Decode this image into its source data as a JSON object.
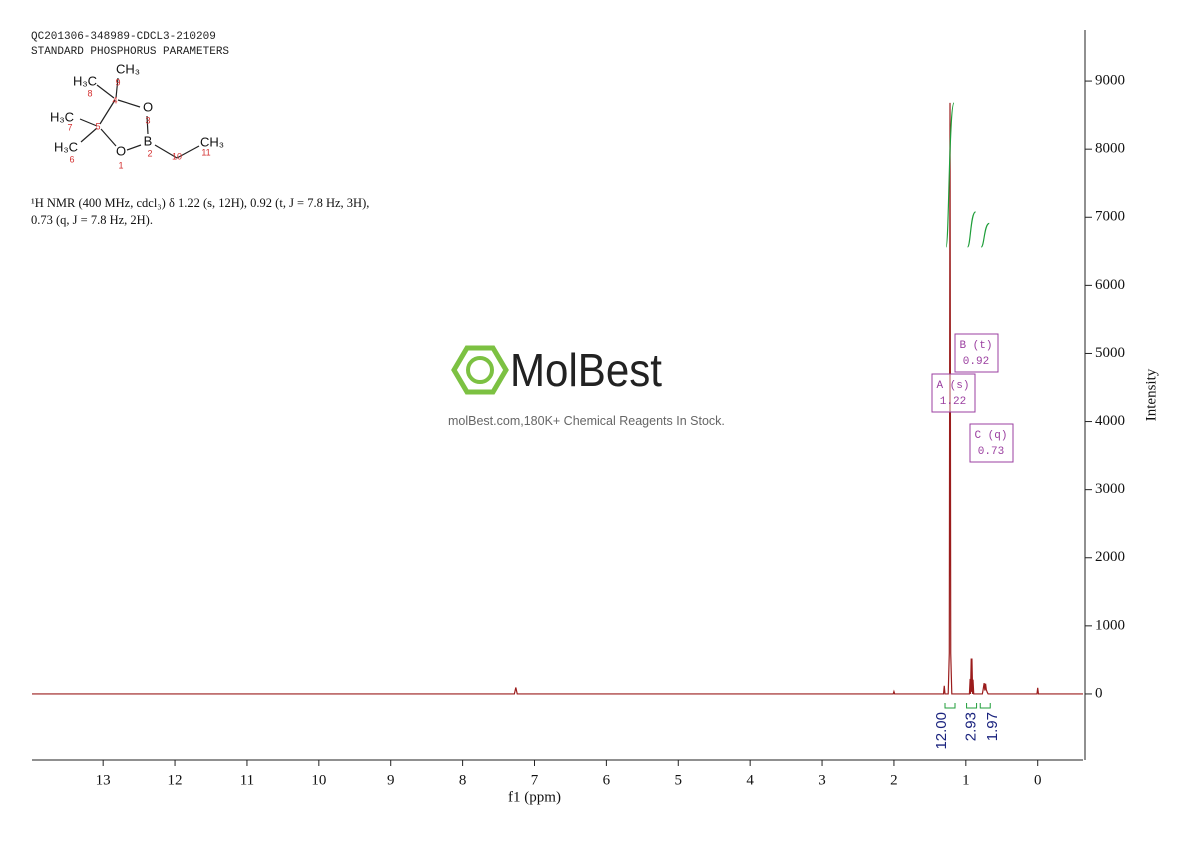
{
  "chart_data": {
    "type": "nmr",
    "header": [
      "QC201306-348989-CDCL3-210209",
      "STANDARD PHOSPHORUS PARAMETERS"
    ],
    "description": "¹H NMR (400 MHz, cdcl₃) δ 1.22 (s, 12H), 0.92 (t, J = 7.8 Hz, 3H), 0.73 (q, J = 7.8 Hz, 2H).",
    "molecule": {
      "atoms": [
        {
          "label": "CH₃",
          "locant": 9
        },
        {
          "label": "H₃C",
          "locant": 8
        },
        {
          "label": "O",
          "locant": 3
        },
        {
          "label": "B",
          "locant": 2
        },
        {
          "label": "CH₃",
          "locant": 11
        },
        {
          "label": "O",
          "locant": 1
        },
        {
          "label": "H₃C",
          "locant": 7
        },
        {
          "label": "H₃C",
          "locant": 6
        }
      ],
      "carbon_locants": [
        4,
        5,
        10
      ]
    },
    "watermark": {
      "logo": "MolBest",
      "text": "molBest.com,180K+ Chemical Reagents In Stock."
    },
    "x": [
      13.99,
      7.28,
      7.26,
      7.24,
      2.01,
      2.0,
      1.99,
      1.31,
      1.3,
      1.29,
      1.245,
      1.23,
      1.22,
      1.21,
      1.195,
      0.95,
      0.94,
      0.935,
      0.925,
      0.92,
      0.915,
      0.905,
      0.9,
      0.89,
      0.77,
      0.76,
      0.745,
      0.735,
      0.725,
      0.715,
      0.7,
      0.69,
      0.01,
      0.0,
      -0.01,
      -0.63
    ],
    "y": [
      0,
      0,
      95,
      0,
      0,
      35,
      0,
      0,
      120,
      0,
      0,
      600,
      8680,
      600,
      0,
      0,
      220,
      0,
      520,
      30,
      520,
      0,
      210,
      0,
      0,
      60,
      160,
      50,
      150,
      60,
      20,
      0,
      0,
      90,
      0,
      0
    ],
    "color": "#9b1c1c",
    "xlim": [
      13.99,
      -0.63
    ],
    "ylim": [
      -970,
      9750
    ],
    "xticks": [
      13,
      12,
      11,
      10,
      9,
      8,
      7,
      6,
      5,
      4,
      3,
      2,
      1,
      0
    ],
    "yticks": [
      0,
      1000,
      2000,
      3000,
      4000,
      5000,
      6000,
      7000,
      8000,
      9000
    ],
    "xlabel": "f1 (ppm)",
    "ylabel": "Intensity",
    "peaks": [
      {
        "label": "A (s)",
        "shift": 1.22
      },
      {
        "label": "B (t)",
        "shift": 0.92
      },
      {
        "label": "C (q)",
        "shift": 0.73
      }
    ],
    "integrals": {
      "values": [
        12,
        2.93,
        1.97
      ],
      "value_labels": [
        "12.00",
        "2.93",
        "1.97"
      ],
      "color": "#1f9e3a",
      "label_color": "#1a237e"
    },
    "peak_box_color": "#9b3fa0"
  }
}
